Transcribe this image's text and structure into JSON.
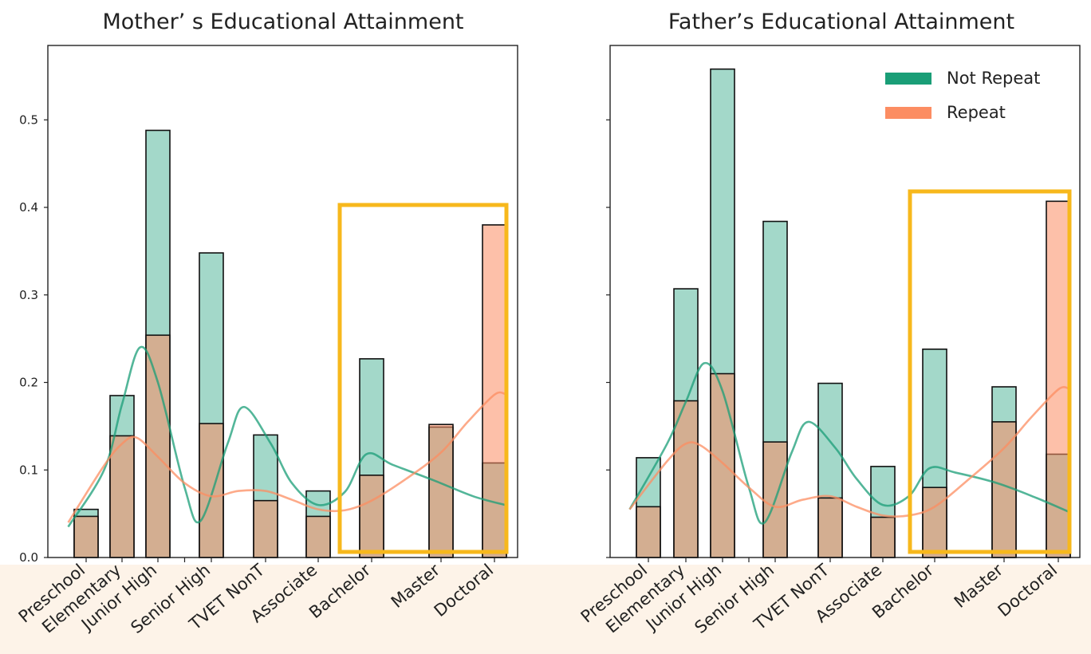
{
  "colors": {
    "not_repeat": "#1a9e77",
    "repeat": "#fc8d62",
    "highlight": "#f7b81c",
    "band": "#fdf3e8"
  },
  "legend": {
    "items": [
      "Not Repeat",
      "Repeat"
    ],
    "placement": "top-right"
  },
  "chart_data": [
    {
      "type": "bar",
      "title": "Mother’ s Educational Attainment",
      "categories": [
        "Preschool",
        "Elementary",
        "Junior High",
        "Senior High",
        "TVET NonT",
        "Associate",
        "Bachelor",
        "Master",
        "Doctoral"
      ],
      "series": [
        {
          "name": "Not Repeat",
          "values": [
            0.055,
            0.185,
            0.488,
            0.348,
            0.14,
            0.076,
            0.227,
            0.149,
            0.108
          ]
        },
        {
          "name": "Repeat",
          "values": [
            0.047,
            0.139,
            0.254,
            0.153,
            0.065,
            0.047,
            0.094,
            0.152,
            0.38
          ]
        }
      ],
      "kde": {
        "Not Repeat": [
          [
            -0.5,
            0.035
          ],
          [
            0.5,
            0.1
          ],
          [
            1.0,
            0.175
          ],
          [
            1.5,
            0.24
          ],
          [
            2.0,
            0.2
          ],
          [
            2.5,
            0.08
          ],
          [
            2.8,
            0.042
          ],
          [
            3.3,
            0.13
          ],
          [
            3.6,
            0.172
          ],
          [
            4.1,
            0.13
          ],
          [
            4.5,
            0.085
          ],
          [
            5.0,
            0.06
          ],
          [
            5.5,
            0.075
          ],
          [
            5.9,
            0.118
          ],
          [
            6.3,
            0.106
          ],
          [
            6.9,
            0.088
          ],
          [
            7.6,
            0.07
          ],
          [
            8.2,
            0.06
          ]
        ],
        "Repeat": [
          [
            -0.5,
            0.04
          ],
          [
            0.5,
            0.105
          ],
          [
            1.0,
            0.13
          ],
          [
            1.4,
            0.137
          ],
          [
            2.0,
            0.115
          ],
          [
            2.5,
            0.085
          ],
          [
            3.0,
            0.07
          ],
          [
            3.5,
            0.076
          ],
          [
            4.0,
            0.076
          ],
          [
            4.5,
            0.066
          ],
          [
            5.0,
            0.055
          ],
          [
            5.5,
            0.054
          ],
          [
            6.0,
            0.065
          ],
          [
            6.5,
            0.09
          ],
          [
            7.0,
            0.12
          ],
          [
            7.5,
            0.155
          ],
          [
            8.0,
            0.186
          ],
          [
            8.2,
            0.187
          ]
        ]
      },
      "ylim": [
        0,
        0.585
      ],
      "yticks": [
        "0.0",
        "0.1",
        "0.2",
        "0.3",
        "0.4",
        "0.5"
      ],
      "highlight_categories": [
        "Associate",
        "Bachelor",
        "Master",
        "Doctoral"
      ]
    },
    {
      "type": "bar",
      "title": "Father’s Educational Attainment",
      "categories": [
        "Preschool",
        "Elementary",
        "Junior High",
        "Senior High",
        "TVET NonT",
        "Associate",
        "Bachelor",
        "Master",
        "Doctoral"
      ],
      "series": [
        {
          "name": "Not Repeat",
          "values": [
            0.114,
            0.307,
            0.558,
            0.384,
            0.199,
            0.104,
            0.238,
            0.195,
            0.118
          ]
        },
        {
          "name": "Repeat",
          "values": [
            0.058,
            0.179,
            0.21,
            0.132,
            0.068,
            0.046,
            0.08,
            0.155,
            0.407
          ]
        }
      ],
      "kde": {
        "Not Repeat": [
          [
            -0.5,
            0.055
          ],
          [
            0.5,
            0.13
          ],
          [
            1.0,
            0.178
          ],
          [
            1.5,
            0.222
          ],
          [
            2.0,
            0.19
          ],
          [
            2.5,
            0.08
          ],
          [
            2.8,
            0.04
          ],
          [
            3.3,
            0.12
          ],
          [
            3.6,
            0.155
          ],
          [
            4.1,
            0.125
          ],
          [
            4.5,
            0.09
          ],
          [
            5.0,
            0.06
          ],
          [
            5.5,
            0.07
          ],
          [
            5.9,
            0.102
          ],
          [
            6.3,
            0.097
          ],
          [
            6.9,
            0.085
          ],
          [
            7.6,
            0.068
          ],
          [
            8.2,
            0.052
          ]
        ],
        "Repeat": [
          [
            -0.5,
            0.055
          ],
          [
            0.5,
            0.11
          ],
          [
            1.0,
            0.13
          ],
          [
            1.4,
            0.128
          ],
          [
            2.0,
            0.108
          ],
          [
            2.5,
            0.08
          ],
          [
            3.0,
            0.058
          ],
          [
            3.5,
            0.066
          ],
          [
            4.0,
            0.07
          ],
          [
            4.5,
            0.058
          ],
          [
            5.0,
            0.048
          ],
          [
            5.5,
            0.048
          ],
          [
            6.0,
            0.058
          ],
          [
            6.5,
            0.09
          ],
          [
            7.0,
            0.125
          ],
          [
            7.5,
            0.16
          ],
          [
            8.0,
            0.192
          ],
          [
            8.2,
            0.193
          ]
        ]
      },
      "ylim": [
        0,
        0.585
      ],
      "yticks": [
        "",
        "",
        "",
        "",
        "",
        ""
      ],
      "highlight_categories": [
        "Associate",
        "Bachelor",
        "Master",
        "Doctoral"
      ]
    }
  ]
}
